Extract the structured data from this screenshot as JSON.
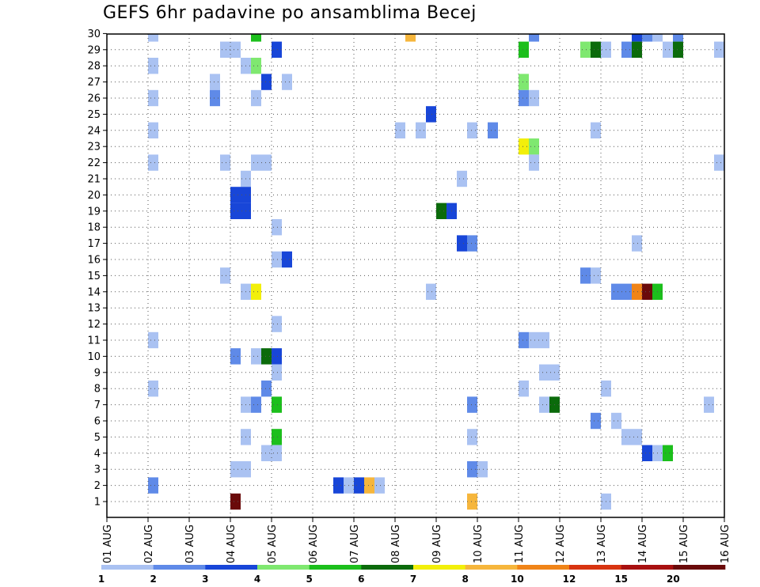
{
  "chart_data": {
    "type": "heatmap",
    "title": "GEFS 6hr padavine po ansamblima Becej",
    "xlabel": "",
    "ylabel": "",
    "x_tick_labels": [
      "01 AUG",
      "02 AUG",
      "03 AUG",
      "04 AUG",
      "05 AUG",
      "06 AUG",
      "07 AUG",
      "08 AUG",
      "09 AUG",
      "10 AUG",
      "11 AUG",
      "12 AUG",
      "13 AUG",
      "14 AUG",
      "15 AUG",
      "16 AUG"
    ],
    "y_tick_labels": [
      "1",
      "2",
      "3",
      "4",
      "5",
      "6",
      "7",
      "8",
      "9",
      "10",
      "11",
      "12",
      "13",
      "14",
      "15",
      "16",
      "17",
      "18",
      "19",
      "20",
      "21",
      "22",
      "23",
      "24",
      "25",
      "26",
      "27",
      "28",
      "29",
      "30"
    ],
    "x_unit": "6-hour step from 01 AUG 00Z (4 steps per day)",
    "y_unit": "ensemble member",
    "grid": true,
    "colorbar": {
      "labels": [
        "1",
        "2",
        "3",
        "4",
        "5",
        "6",
        "7",
        "8",
        "10",
        "12",
        "15",
        "20"
      ],
      "colors": [
        "#aac2f2",
        "#5f8ae8",
        "#1846d8",
        "#7fe870",
        "#1cbf1c",
        "#0b6b0b",
        "#f2ef0a",
        "#f6b63c",
        "#f08418",
        "#d83410",
        "#a81010",
        "#6a0a0a"
      ]
    },
    "cells": [
      {
        "t": 4,
        "m": 30,
        "c": 0
      },
      {
        "t": 14,
        "m": 30,
        "c": 4
      },
      {
        "t": 29,
        "m": 30,
        "c": 7
      },
      {
        "t": 41,
        "m": 30,
        "c": 1
      },
      {
        "t": 51,
        "m": 30,
        "c": 2
      },
      {
        "t": 52,
        "m": 30,
        "c": 1
      },
      {
        "t": 53,
        "m": 30,
        "c": 0
      },
      {
        "t": 55,
        "m": 30,
        "c": 1
      },
      {
        "t": 11,
        "m": 29,
        "c": 0
      },
      {
        "t": 12,
        "m": 29,
        "c": 0
      },
      {
        "t": 16,
        "m": 29,
        "c": 2
      },
      {
        "t": 40,
        "m": 29,
        "c": 4
      },
      {
        "t": 46,
        "m": 29,
        "c": 3
      },
      {
        "t": 47,
        "m": 29,
        "c": 5
      },
      {
        "t": 48,
        "m": 29,
        "c": 0
      },
      {
        "t": 50,
        "m": 29,
        "c": 1
      },
      {
        "t": 51,
        "m": 29,
        "c": 5
      },
      {
        "t": 54,
        "m": 29,
        "c": 0
      },
      {
        "t": 55,
        "m": 29,
        "c": 5
      },
      {
        "t": 59,
        "m": 29,
        "c": 0
      },
      {
        "t": 4,
        "m": 28,
        "c": 0
      },
      {
        "t": 13,
        "m": 28,
        "c": 0
      },
      {
        "t": 14,
        "m": 28,
        "c": 3
      },
      {
        "t": 10,
        "m": 27,
        "c": 0
      },
      {
        "t": 15,
        "m": 27,
        "c": 2
      },
      {
        "t": 17,
        "m": 27,
        "c": 0
      },
      {
        "t": 40,
        "m": 27,
        "c": 3
      },
      {
        "t": 4,
        "m": 26,
        "c": 0
      },
      {
        "t": 10,
        "m": 26,
        "c": 1
      },
      {
        "t": 14,
        "m": 26,
        "c": 0
      },
      {
        "t": 40,
        "m": 26,
        "c": 1
      },
      {
        "t": 41,
        "m": 26,
        "c": 0
      },
      {
        "t": 31,
        "m": 25,
        "c": 2
      },
      {
        "t": 4,
        "m": 24,
        "c": 0
      },
      {
        "t": 28,
        "m": 24,
        "c": 0
      },
      {
        "t": 30,
        "m": 24,
        "c": 0
      },
      {
        "t": 35,
        "m": 24,
        "c": 0
      },
      {
        "t": 37,
        "m": 24,
        "c": 1
      },
      {
        "t": 47,
        "m": 24,
        "c": 0
      },
      {
        "t": 40,
        "m": 23,
        "c": 6
      },
      {
        "t": 41,
        "m": 23,
        "c": 3
      },
      {
        "t": 4,
        "m": 22,
        "c": 0
      },
      {
        "t": 11,
        "m": 22,
        "c": 0
      },
      {
        "t": 14,
        "m": 22,
        "c": 0
      },
      {
        "t": 15,
        "m": 22,
        "c": 0
      },
      {
        "t": 41,
        "m": 22,
        "c": 0
      },
      {
        "t": 59,
        "m": 22,
        "c": 0
      },
      {
        "t": 60,
        "m": 22,
        "c": 4
      },
      {
        "t": 13,
        "m": 21,
        "c": 0
      },
      {
        "t": 34,
        "m": 21,
        "c": 0
      },
      {
        "t": 12,
        "m": 20,
        "c": 2
      },
      {
        "t": 13,
        "m": 20,
        "c": 2
      },
      {
        "t": 12,
        "m": 19,
        "c": 2
      },
      {
        "t": 13,
        "m": 19,
        "c": 2
      },
      {
        "t": 32,
        "m": 19,
        "c": 5
      },
      {
        "t": 33,
        "m": 19,
        "c": 2
      },
      {
        "t": 16,
        "m": 18,
        "c": 0
      },
      {
        "t": 60,
        "m": 18,
        "c": 1
      },
      {
        "t": 34,
        "m": 17,
        "c": 2
      },
      {
        "t": 35,
        "m": 17,
        "c": 1
      },
      {
        "t": 51,
        "m": 17,
        "c": 0
      },
      {
        "t": 16,
        "m": 16,
        "c": 0
      },
      {
        "t": 17,
        "m": 16,
        "c": 2
      },
      {
        "t": 11,
        "m": 15,
        "c": 0
      },
      {
        "t": 46,
        "m": 15,
        "c": 1
      },
      {
        "t": 47,
        "m": 15,
        "c": 0
      },
      {
        "t": 13,
        "m": 14,
        "c": 0
      },
      {
        "t": 14,
        "m": 14,
        "c": 6
      },
      {
        "t": 31,
        "m": 14,
        "c": 0
      },
      {
        "t": 49,
        "m": 14,
        "c": 1
      },
      {
        "t": 50,
        "m": 14,
        "c": 1
      },
      {
        "t": 51,
        "m": 14,
        "c": 8
      },
      {
        "t": 52,
        "m": 14,
        "c": 11
      },
      {
        "t": 53,
        "m": 14,
        "c": 4
      },
      {
        "t": 16,
        "m": 12,
        "c": 0
      },
      {
        "t": 4,
        "m": 11,
        "c": 0
      },
      {
        "t": 40,
        "m": 11,
        "c": 1
      },
      {
        "t": 41,
        "m": 11,
        "c": 0
      },
      {
        "t": 42,
        "m": 11,
        "c": 0
      },
      {
        "t": 12,
        "m": 10,
        "c": 1
      },
      {
        "t": 14,
        "m": 10,
        "c": 0
      },
      {
        "t": 15,
        "m": 10,
        "c": 5
      },
      {
        "t": 16,
        "m": 10,
        "c": 2
      },
      {
        "t": 16,
        "m": 9,
        "c": 0
      },
      {
        "t": 42,
        "m": 9,
        "c": 0
      },
      {
        "t": 43,
        "m": 9,
        "c": 0
      },
      {
        "t": 4,
        "m": 8,
        "c": 0
      },
      {
        "t": 15,
        "m": 8,
        "c": 1
      },
      {
        "t": 40,
        "m": 8,
        "c": 0
      },
      {
        "t": 48,
        "m": 8,
        "c": 0
      },
      {
        "t": 60,
        "m": 8,
        "c": 0
      },
      {
        "t": 13,
        "m": 7,
        "c": 0
      },
      {
        "t": 14,
        "m": 7,
        "c": 1
      },
      {
        "t": 16,
        "m": 7,
        "c": 4
      },
      {
        "t": 35,
        "m": 7,
        "c": 1
      },
      {
        "t": 42,
        "m": 7,
        "c": 0
      },
      {
        "t": 43,
        "m": 7,
        "c": 5
      },
      {
        "t": 58,
        "m": 7,
        "c": 0
      },
      {
        "t": 47,
        "m": 6,
        "c": 1
      },
      {
        "t": 49,
        "m": 6,
        "c": 0
      },
      {
        "t": 13,
        "m": 5,
        "c": 0
      },
      {
        "t": 16,
        "m": 5,
        "c": 4
      },
      {
        "t": 35,
        "m": 5,
        "c": 0
      },
      {
        "t": 50,
        "m": 5,
        "c": 0
      },
      {
        "t": 51,
        "m": 5,
        "c": 0
      },
      {
        "t": 15,
        "m": 4,
        "c": 0
      },
      {
        "t": 16,
        "m": 4,
        "c": 0
      },
      {
        "t": 52,
        "m": 4,
        "c": 2
      },
      {
        "t": 53,
        "m": 4,
        "c": 0
      },
      {
        "t": 54,
        "m": 4,
        "c": 4
      },
      {
        "t": 12,
        "m": 3,
        "c": 0
      },
      {
        "t": 13,
        "m": 3,
        "c": 0
      },
      {
        "t": 35,
        "m": 3,
        "c": 1
      },
      {
        "t": 36,
        "m": 3,
        "c": 0
      },
      {
        "t": 4,
        "m": 2,
        "c": 1
      },
      {
        "t": 22,
        "m": 2,
        "c": 2
      },
      {
        "t": 23,
        "m": 2,
        "c": 0
      },
      {
        "t": 24,
        "m": 2,
        "c": 2
      },
      {
        "t": 25,
        "m": 2,
        "c": 7
      },
      {
        "t": 26,
        "m": 2,
        "c": 0
      },
      {
        "t": 12,
        "m": 1,
        "c": 11
      },
      {
        "t": 35,
        "m": 1,
        "c": 7
      },
      {
        "t": 48,
        "m": 1,
        "c": 0
      }
    ]
  }
}
